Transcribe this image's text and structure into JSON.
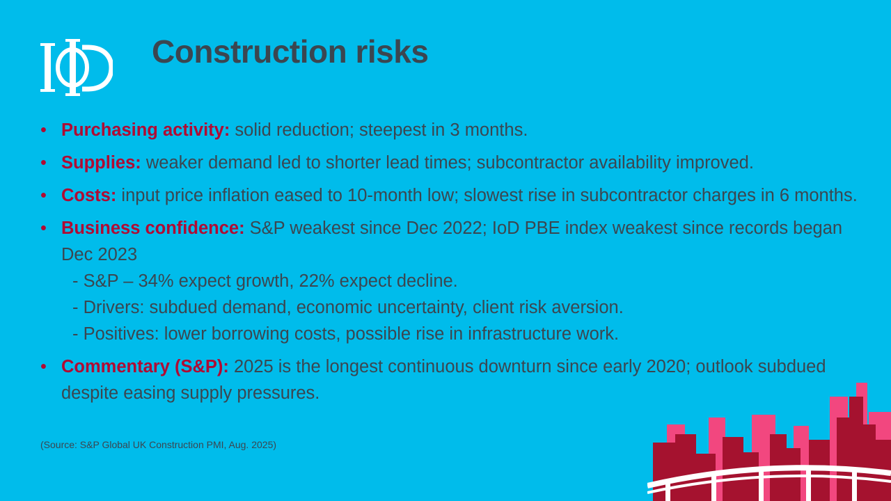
{
  "logo": {
    "text": "IoD"
  },
  "title": "Construction risks",
  "bullets": [
    {
      "label": "Purchasing activity:",
      "text": " solid reduction; steepest in 3 months."
    },
    {
      "label": "Supplies:",
      "text": " weaker demand led to shorter lead times; subcontractor availability improved."
    },
    {
      "label": "Costs:",
      "text": " input price inflation eased to 10-month low; slowest rise in subcontractor charges in 6 months."
    },
    {
      "label": "Business confidence:",
      "text": " S&P weakest since Dec 2022; IoD PBE index weakest since records began Dec 2023",
      "sub": [
        "- S&P – 34% expect growth, 22% expect decline.",
        "- Drivers: subdued demand, economic uncertainty, client risk aversion.",
        "- Positives: lower borrowing costs, possible rise in infrastructure work."
      ]
    },
    {
      "label": "Commentary (S&P):",
      "text": " 2025 is the longest continuous downturn since early 2020; outlook subdued despite easing supply pressures."
    }
  ],
  "source": "(Source: S&P Global UK Construction PMI, Aug. 2025)",
  "colors": {
    "background": "#00BCEB",
    "accent": "#B00B33",
    "text": "#3B4650"
  }
}
